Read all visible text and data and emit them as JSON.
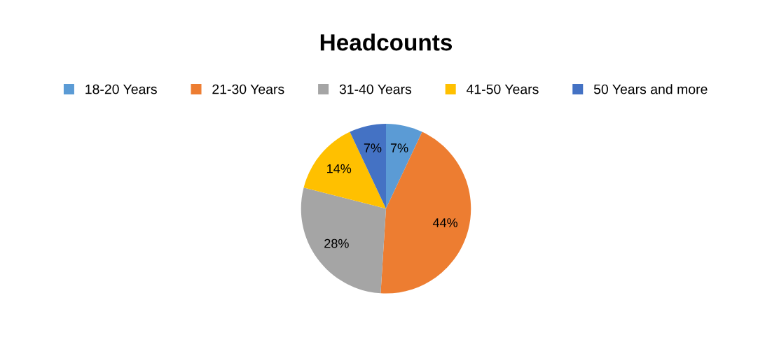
{
  "chart_data": {
    "type": "pie",
    "title": "Headcounts",
    "categories": [
      "18-20 Years",
      "21-30 Years",
      "31-40 Years",
      "41-50 Years",
      "50 Years and more"
    ],
    "values": [
      7,
      44,
      28,
      14,
      7
    ],
    "colors": [
      "#5b9bd5",
      "#ed7d31",
      "#a5a5a5",
      "#ffc000",
      "#4472c4"
    ],
    "value_labels": [
      "7%",
      "44%",
      "28%",
      "14%",
      "7%"
    ],
    "legend": "top"
  }
}
